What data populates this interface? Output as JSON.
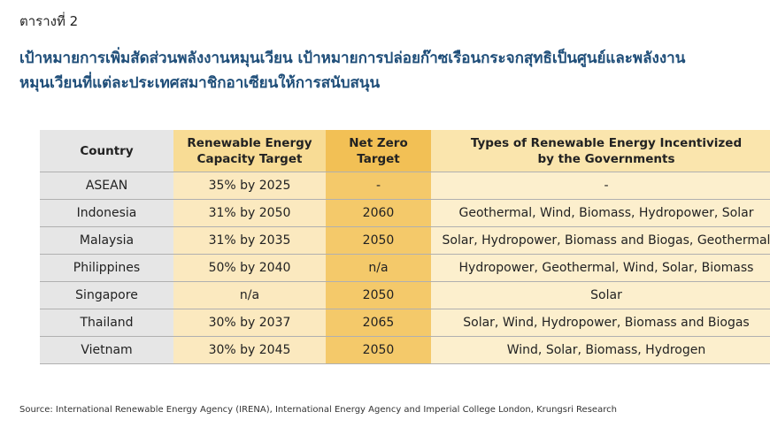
{
  "table_label": "ตารางที่ 2",
  "title_line1": "เป้าหมายการเพิ่มสัดส่วนพลังงานหมุนเวียน เป้าหมายการปล่อยก๊าซเรือนกระจกสุทธิเป็นศูนย์และพลังงาน",
  "title_line2": "หมุนเวียนที่แต่ละประเทศสมาชิกอาเซียนให้การสนับสนุน",
  "headers": {
    "country": "Country",
    "re_target_line1": "Renewable Energy",
    "re_target_line2": "Capacity Target",
    "nz_line1": "Net Zero",
    "nz_line2": "Target",
    "types_line1": "Types of Renewable Energy Incentivized",
    "types_line2": "by the Governments"
  },
  "rows": [
    {
      "country": "ASEAN",
      "re_target": "35% by 2025",
      "net_zero": "-",
      "types": "-"
    },
    {
      "country": "Indonesia",
      "re_target": "31% by 2050",
      "net_zero": "2060",
      "types": "Geothermal, Wind, Biomass, Hydropower, Solar"
    },
    {
      "country": "Malaysia",
      "re_target": "31% by 2035",
      "net_zero": "2050",
      "types": "Solar, Hydropower, Biomass and Biogas, Geothermal"
    },
    {
      "country": "Philippines",
      "re_target": "50% by 2040",
      "net_zero": "n/a",
      "types": "Hydropower, Geothermal, Wind, Solar, Biomass"
    },
    {
      "country": "Singapore",
      "re_target": "n/a",
      "net_zero": "2050",
      "types": "Solar"
    },
    {
      "country": "Thailand",
      "re_target": "30% by 2037",
      "net_zero": "2065",
      "types": "Solar, Wind, Hydropower, Biomass and Biogas"
    },
    {
      "country": "Vietnam",
      "re_target": "30% by 2045",
      "net_zero": "2050",
      "types": "Wind, Solar, Biomass, Hydrogen"
    }
  ],
  "source": "Source: International Renewable Energy Agency (IRENA), International Energy Agency and Imperial College London, Krungsri Research"
}
